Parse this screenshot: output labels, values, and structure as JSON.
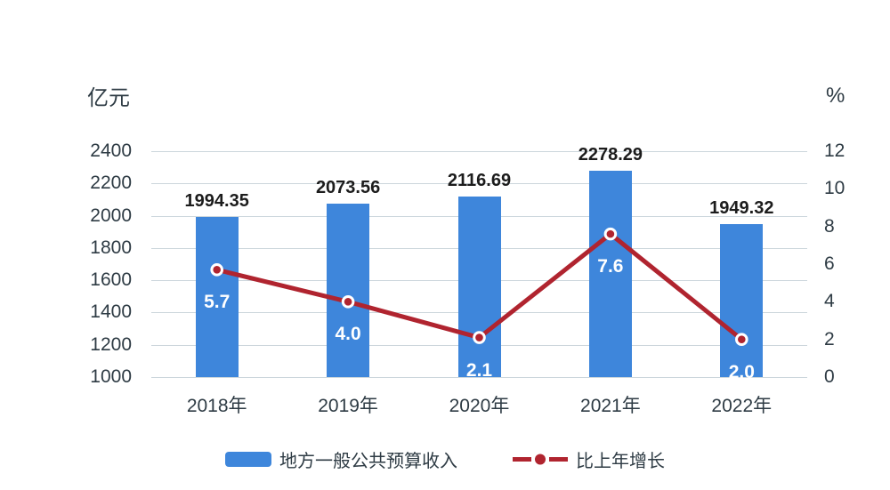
{
  "chart_data": {
    "type": "bar+line",
    "categories": [
      "2018年",
      "2019年",
      "2020年",
      "2021年",
      "2022年"
    ],
    "series": [
      {
        "name": "地方一般公共预算收入",
        "type": "bar",
        "axis": "left",
        "values": [
          1994.35,
          2073.56,
          2116.69,
          2278.29,
          1949.32
        ],
        "labels": [
          "1994.35",
          "2073.56",
          "2116.69",
          "2278.29",
          "1949.32"
        ],
        "color": "#3e86db"
      },
      {
        "name": "比上年增长",
        "type": "line",
        "axis": "right",
        "values": [
          5.7,
          4.0,
          2.1,
          7.6,
          2.0
        ],
        "labels": [
          "5.7",
          "4.0",
          "2.1",
          "7.6",
          "2.0"
        ],
        "color": "#b0242f"
      }
    ],
    "left_axis": {
      "title": "亿元",
      "min": 1000,
      "max": 2400,
      "step": 200,
      "ticks": [
        "2400",
        "2200",
        "2000",
        "1800",
        "1600",
        "1400",
        "1200",
        "1000"
      ]
    },
    "right_axis": {
      "title": "%",
      "min": 0,
      "max": 12,
      "step": 2,
      "ticks": [
        "12",
        "10",
        "8",
        "6",
        "4",
        "2",
        "0"
      ]
    },
    "grid": true,
    "legend_position": "bottom",
    "colors": {
      "gridline": "#ccd6dc",
      "axis_text": "#2e3b44",
      "bar_label_text": "#1c1c1c",
      "point_label_text": "#ffffff",
      "marker_ring": "#ffffff",
      "background": "#ffffff"
    }
  }
}
